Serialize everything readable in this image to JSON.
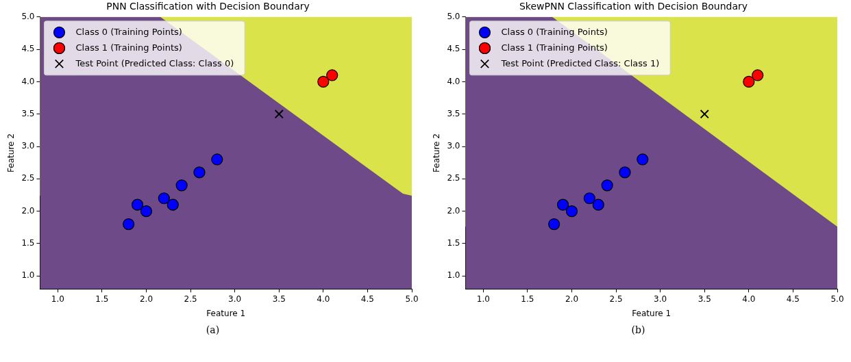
{
  "chart_data": [
    {
      "type": "scatter",
      "title": "PNN Classification with Decision Boundary",
      "xlabel": "Feature 1",
      "ylabel": "Feature 2",
      "xlim": [
        0.8,
        5.0
      ],
      "ylim": [
        0.8,
        5.0
      ],
      "xticks": [
        {
          "value": 1,
          "label": "1.0"
        },
        {
          "value": 1.5,
          "label": "1.5"
        },
        {
          "value": 2,
          "label": "2.0"
        },
        {
          "value": 2.5,
          "label": "2.5"
        },
        {
          "value": 3,
          "label": "3.0"
        },
        {
          "value": 3.5,
          "label": "3.5"
        },
        {
          "value": 4,
          "label": "4.0"
        },
        {
          "value": 4.5,
          "label": "4.5"
        },
        {
          "value": 5,
          "label": "5.0"
        }
      ],
      "yticks": [
        {
          "value": 1,
          "label": "1.0"
        },
        {
          "value": 1.5,
          "label": "1.5"
        },
        {
          "value": 2,
          "label": "2.0"
        },
        {
          "value": 2.5,
          "label": "2.5"
        },
        {
          "value": 3,
          "label": "3.0"
        },
        {
          "value": 3.5,
          "label": "3.5"
        },
        {
          "value": 4,
          "label": "4.0"
        },
        {
          "value": 4.5,
          "label": "4.5"
        },
        {
          "value": 5,
          "label": "5.0"
        }
      ],
      "bands": [
        {
          "axis": "y",
          "from": 2.24,
          "to": 5.0,
          "color": "#dbe34a"
        }
      ],
      "series": [
        {
          "type": "area",
          "color": "#6e4a89",
          "x": [
            0.8,
            2.16,
            4.9,
            5.0
          ],
          "values": [
            5.0,
            5.0,
            2.27,
            2.24
          ]
        },
        {
          "name": "Class 0 (Training Points)",
          "color": "#0000ff",
          "marker": "circle",
          "x": [
            1.8,
            1.9,
            2.0,
            2.2,
            2.3,
            2.4,
            2.6,
            2.8
          ],
          "values": [
            1.8,
            2.1,
            2.0,
            2.2,
            2.1,
            2.4,
            2.6,
            2.8
          ]
        },
        {
          "name": "Class 1 (Training Points)",
          "color": "#ff0000",
          "marker": "circle",
          "x": [
            4.0,
            4.1
          ],
          "values": [
            4.0,
            4.1
          ]
        },
        {
          "name": "Test Point (Predicted Class: Class 0)",
          "color": "#000000",
          "marker": "cross",
          "x": [
            3.5
          ],
          "values": [
            3.5
          ]
        }
      ],
      "legend": "top left",
      "grid": false,
      "annotations": [
        "(a)"
      ]
    },
    {
      "type": "scatter",
      "title": "SkewPNN Classification with Decision Boundary",
      "xlabel": "Feature 1",
      "ylabel": "Feature 2",
      "xlim": [
        0.8,
        5.0
      ],
      "ylim": [
        0.8,
        5.0
      ],
      "xticks": [
        {
          "value": 1,
          "label": "1.0"
        },
        {
          "value": 1.5,
          "label": "1.5"
        },
        {
          "value": 2,
          "label": "2.0"
        },
        {
          "value": 2.5,
          "label": "2.5"
        },
        {
          "value": 3,
          "label": "3.0"
        },
        {
          "value": 3.5,
          "label": "3.5"
        },
        {
          "value": 4,
          "label": "4.0"
        },
        {
          "value": 4.5,
          "label": "4.5"
        },
        {
          "value": 5,
          "label": "5.0"
        }
      ],
      "yticks": [
        {
          "value": 1,
          "label": "1.0"
        },
        {
          "value": 1.5,
          "label": "1.5"
        },
        {
          "value": 2,
          "label": "2.0"
        },
        {
          "value": 2.5,
          "label": "2.5"
        },
        {
          "value": 3,
          "label": "3.0"
        },
        {
          "value": 3.5,
          "label": "3.5"
        },
        {
          "value": 4,
          "label": "4.0"
        },
        {
          "value": 4.5,
          "label": "4.5"
        },
        {
          "value": 5,
          "label": "5.0"
        }
      ],
      "bands": [
        {
          "axis": "y",
          "from": 1.76,
          "to": 5.0,
          "color": "#dbe34a"
        }
      ],
      "series": [
        {
          "type": "area",
          "color": "#6e4a89",
          "x": [
            0.8,
            1.78,
            5.0
          ],
          "values": [
            5.0,
            5.0,
            1.76
          ]
        },
        {
          "name": "Class 0 (Training Points)",
          "color": "#0000ff",
          "marker": "circle",
          "x": [
            1.8,
            1.9,
            2.0,
            2.2,
            2.3,
            2.4,
            2.6,
            2.8
          ],
          "values": [
            1.8,
            2.1,
            2.0,
            2.2,
            2.1,
            2.4,
            2.6,
            2.8
          ]
        },
        {
          "name": "Class 1 (Training Points)",
          "color": "#ff0000",
          "marker": "circle",
          "x": [
            4.0,
            4.1
          ],
          "values": [
            4.0,
            4.1
          ]
        },
        {
          "name": "Test Point (Predicted Class: Class 1)",
          "color": "#000000",
          "marker": "cross",
          "x": [
            3.5
          ],
          "values": [
            3.5
          ]
        }
      ],
      "legend": "top left",
      "grid": false,
      "annotations": [
        "(b)"
      ]
    }
  ]
}
